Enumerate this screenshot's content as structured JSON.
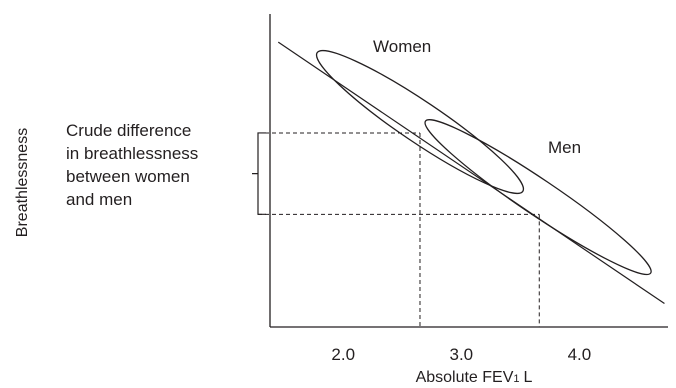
{
  "chart_data": {
    "type": "scatter",
    "title": "",
    "xlabel": "Absolute FEV",
    "xlabel_subscript": "1",
    "xlabel_unit": "L",
    "ylabel": "Breathlessness",
    "x_ticks": [
      {
        "value": 2.0,
        "label": "2.0"
      },
      {
        "value": 3.0,
        "label": "3.0"
      },
      {
        "value": 4.0,
        "label": "4.0"
      }
    ],
    "xlim": [
      1.38,
      4.75
    ],
    "ylim": [
      0,
      10
    ],
    "y_ticks_shown": false,
    "grid": false,
    "groups": [
      {
        "name": "Women",
        "center": [
          2.65,
          6.55
        ],
        "semi_major_x": 1.05,
        "semi_minor_y": 1.55,
        "tilt_deg": 34
      },
      {
        "name": "Men",
        "center": [
          3.65,
          4.15
        ],
        "semi_major_x": 1.15,
        "semi_minor_y": 1.35,
        "tilt_deg": 34
      }
    ],
    "regression_line": {
      "from": [
        1.45,
        9.1
      ],
      "to": [
        4.72,
        0.75
      ]
    },
    "reference_lines": [
      {
        "group": "Women",
        "x": 2.65,
        "y": 6.2
      },
      {
        "group": "Men",
        "x": 3.66,
        "y": 3.6
      }
    ],
    "annotation": {
      "lines": [
        "Crude difference",
        "in breathlessness",
        "between women",
        "and men"
      ]
    }
  }
}
